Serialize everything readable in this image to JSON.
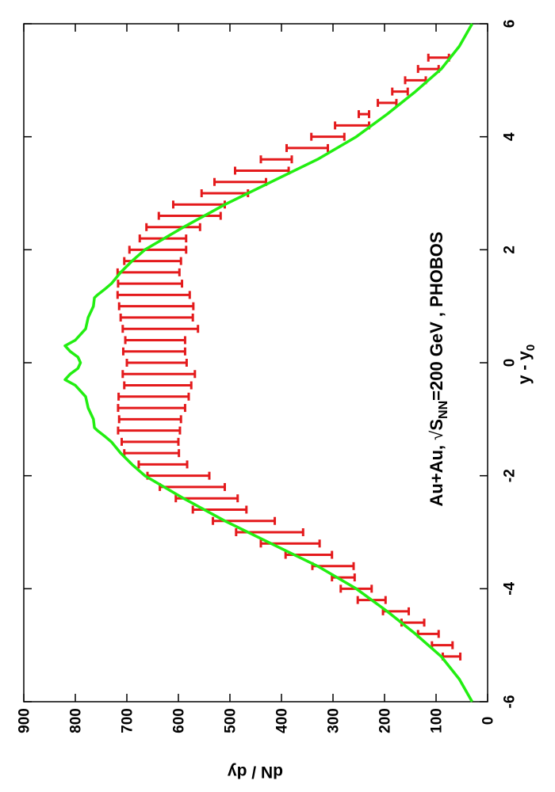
{
  "chart_data": {
    "type": "scatter",
    "orientation": "rotated-90-ccw",
    "xlabel": "y - y",
    "xlabel_sub": "0",
    "ylabel": "dN / dy",
    "xlim": [
      -6,
      6
    ],
    "ylim": [
      0,
      900
    ],
    "xticks": [
      -6,
      -4,
      -2,
      0,
      2,
      4,
      6
    ],
    "yticks": [
      0,
      100,
      200,
      300,
      400,
      500,
      600,
      700,
      800,
      900
    ],
    "grid": false,
    "annotation": {
      "prefix": "Au+Au, ",
      "sqrt": "√",
      "S": "S",
      "sub": "NN",
      "suffix": "=200 GeV , PHOBOS"
    },
    "series": [
      {
        "kind": "errorbars",
        "color": "#e41a1c",
        "points": [
          {
            "x": -5.2,
            "y": 70,
            "err": 17
          },
          {
            "x": -5.0,
            "y": 88,
            "err": 20
          },
          {
            "x": -4.8,
            "y": 115,
            "err": 20
          },
          {
            "x": -4.6,
            "y": 145,
            "err": 22
          },
          {
            "x": -4.4,
            "y": 178,
            "err": 25
          },
          {
            "x": -4.2,
            "y": 225,
            "err": 27
          },
          {
            "x": -4.0,
            "y": 255,
            "err": 30
          },
          {
            "x": -3.8,
            "y": 280,
            "err": 22
          },
          {
            "x": -3.6,
            "y": 300,
            "err": 40
          },
          {
            "x": -3.4,
            "y": 347,
            "err": 45
          },
          {
            "x": -3.2,
            "y": 383,
            "err": 57
          },
          {
            "x": -3.0,
            "y": 423,
            "err": 65
          },
          {
            "x": -2.8,
            "y": 473,
            "err": 60
          },
          {
            "x": -2.6,
            "y": 520,
            "err": 52
          },
          {
            "x": -2.4,
            "y": 545,
            "err": 60
          },
          {
            "x": -2.2,
            "y": 573,
            "err": 63
          },
          {
            "x": -2.0,
            "y": 600,
            "err": 60
          },
          {
            "x": -1.8,
            "y": 630,
            "err": 47
          },
          {
            "x": -1.6,
            "y": 652,
            "err": 53
          },
          {
            "x": -1.4,
            "y": 655,
            "err": 55
          },
          {
            "x": -1.2,
            "y": 657,
            "err": 60
          },
          {
            "x": -1.0,
            "y": 655,
            "err": 60
          },
          {
            "x": -0.8,
            "y": 652,
            "err": 65
          },
          {
            "x": -0.6,
            "y": 648,
            "err": 68
          },
          {
            "x": -0.4,
            "y": 640,
            "err": 65
          },
          {
            "x": -0.2,
            "y": 638,
            "err": 70
          },
          {
            "x": 0.0,
            "y": 642,
            "err": 58
          },
          {
            "x": 0.2,
            "y": 647,
            "err": 60
          },
          {
            "x": 0.4,
            "y": 645,
            "err": 58
          },
          {
            "x": 0.6,
            "y": 635,
            "err": 73
          },
          {
            "x": 0.8,
            "y": 642,
            "err": 70
          },
          {
            "x": 1.0,
            "y": 643,
            "err": 72
          },
          {
            "x": 1.2,
            "y": 648,
            "err": 70
          },
          {
            "x": 1.4,
            "y": 655,
            "err": 62
          },
          {
            "x": 1.6,
            "y": 658,
            "err": 60
          },
          {
            "x": 1.8,
            "y": 650,
            "err": 55
          },
          {
            "x": 2.0,
            "y": 640,
            "err": 55
          },
          {
            "x": 2.2,
            "y": 630,
            "err": 45
          },
          {
            "x": 2.4,
            "y": 610,
            "err": 52
          },
          {
            "x": 2.6,
            "y": 578,
            "err": 60
          },
          {
            "x": 2.8,
            "y": 560,
            "err": 50
          },
          {
            "x": 3.0,
            "y": 510,
            "err": 45
          },
          {
            "x": 3.2,
            "y": 480,
            "err": 50
          },
          {
            "x": 3.4,
            "y": 438,
            "err": 52
          },
          {
            "x": 3.6,
            "y": 410,
            "err": 30
          },
          {
            "x": 3.8,
            "y": 350,
            "err": 40
          },
          {
            "x": 4.0,
            "y": 310,
            "err": 32
          },
          {
            "x": 4.2,
            "y": 263,
            "err": 33
          },
          {
            "x": 4.4,
            "y": 240,
            "err": 10
          },
          {
            "x": 4.6,
            "y": 195,
            "err": 18
          },
          {
            "x": 4.8,
            "y": 170,
            "err": 15
          },
          {
            "x": 5.0,
            "y": 140,
            "err": 20
          },
          {
            "x": 5.2,
            "y": 115,
            "err": 20
          },
          {
            "x": 5.4,
            "y": 95,
            "err": 20
          }
        ]
      },
      {
        "kind": "line",
        "color": "#22ee11",
        "x": [
          -6.0,
          -5.6,
          -5.2,
          -4.8,
          -4.4,
          -4.0,
          -3.6,
          -3.2,
          -2.8,
          -2.4,
          -2.0,
          -1.8,
          -1.6,
          -1.4,
          -1.3,
          -1.2,
          -1.15,
          -1.0,
          -0.8,
          -0.6,
          -0.4,
          -0.3,
          -0.2,
          -0.1,
          0.0,
          0.1,
          0.2,
          0.3,
          0.4,
          0.6,
          0.8,
          1.0,
          1.15,
          1.2,
          1.3,
          1.4,
          1.6,
          1.8,
          2.0,
          2.4,
          2.8,
          3.2,
          3.6,
          4.0,
          4.4,
          4.8,
          5.2,
          5.6,
          6.0
        ],
        "y": [
          30,
          55,
          90,
          140,
          195,
          255,
          330,
          420,
          510,
          590,
          665,
          690,
          712,
          730,
          743,
          757,
          763,
          765,
          775,
          780,
          800,
          820,
          810,
          795,
          790,
          795,
          810,
          820,
          800,
          780,
          775,
          765,
          763,
          757,
          743,
          730,
          712,
          690,
          665,
          590,
          510,
          420,
          330,
          255,
          195,
          140,
          90,
          55,
          30
        ]
      }
    ]
  }
}
